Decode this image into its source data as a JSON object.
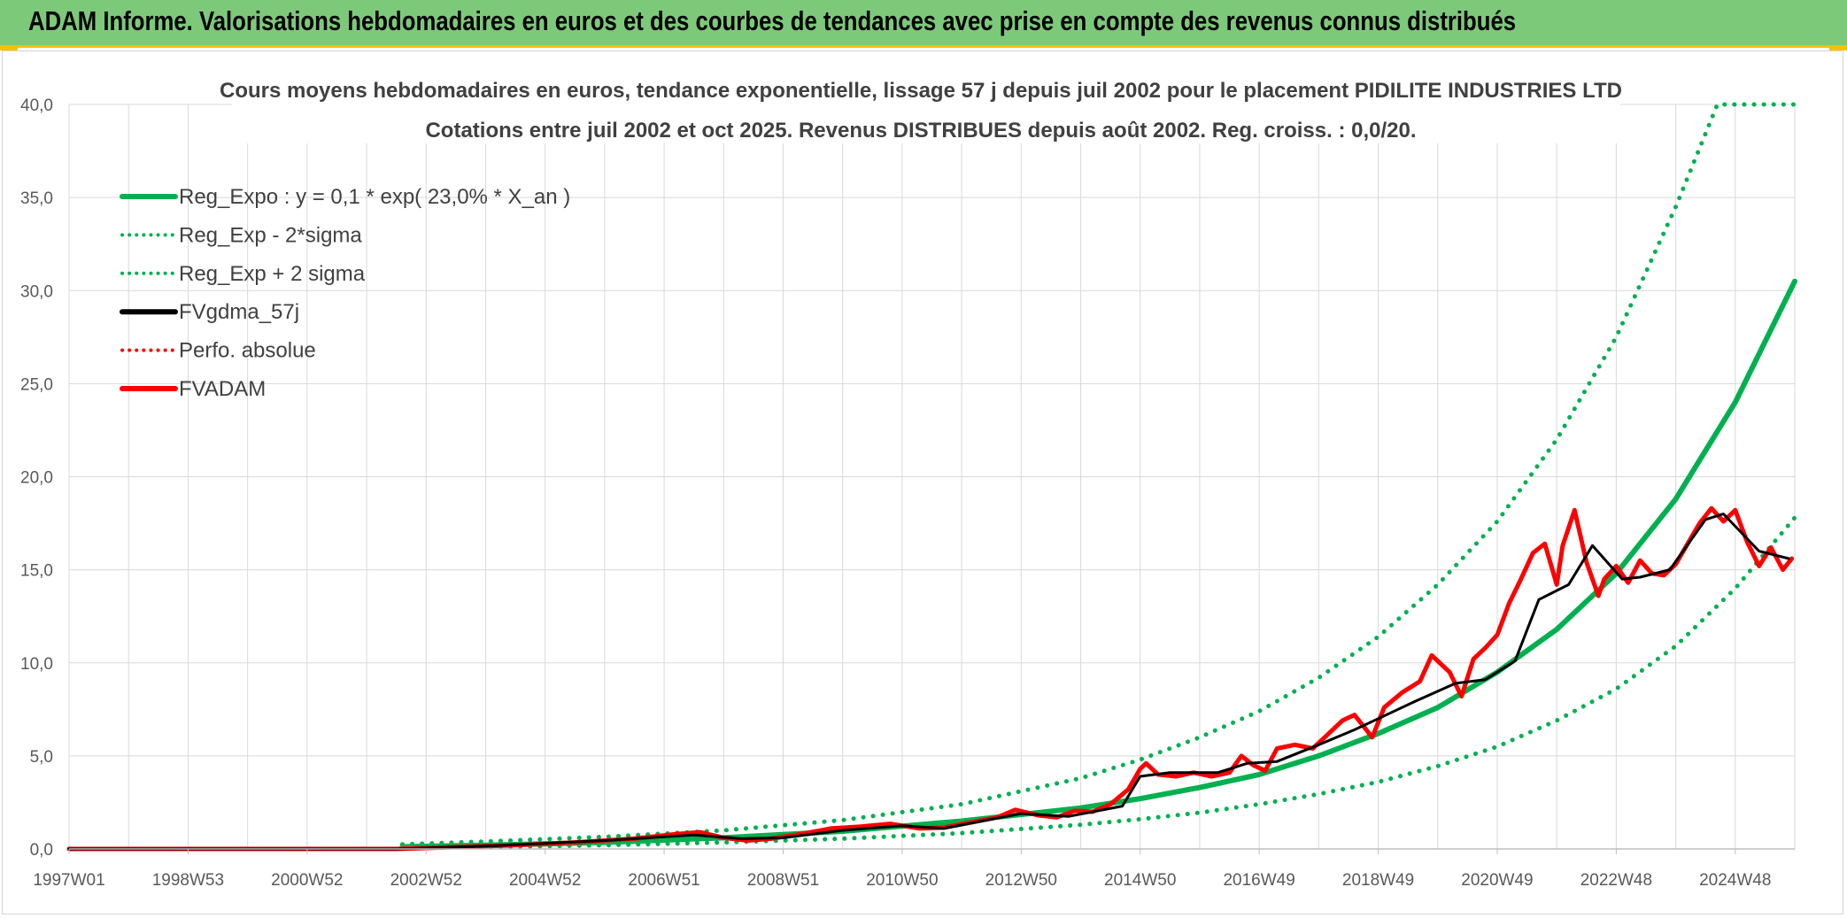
{
  "banner": {
    "title": "ADAM Informe. Valorisations hebdomadaires en euros et des courbes de tendances avec prise en compte des revenus connus distribués"
  },
  "colors": {
    "banner_bg": "#7dc97a",
    "banner_accent": "#f2c200",
    "trend": "#00b050",
    "price": "#ff0000",
    "moving_average": "#000000",
    "grid": "#d9d9d9"
  },
  "chart_data": {
    "type": "line",
    "title": "Cours moyens hebdomadaires en euros, tendance exponentielle, lissage 57 j depuis juil 2002 pour le placement PIDILITE INDUSTRIES LTD",
    "subtitle": "Cotations entre juil 2002 et oct 2025. Revenus DISTRIBUES depuis août 2002. Reg. croiss. : 0,0/20.",
    "xlabel": "",
    "ylabel": "",
    "xlim": [
      1997.0,
      2026.0
    ],
    "ylim": [
      0,
      40
    ],
    "y_ticks": [
      "0,0",
      "5,0",
      "10,0",
      "15,0",
      "20,0",
      "25,0",
      "30,0",
      "35,0",
      "40,0"
    ],
    "x_ticks": [
      {
        "label": "1997W01",
        "x": 1997.0
      },
      {
        "label": "1998W53",
        "x": 1999.0
      },
      {
        "label": "2000W52",
        "x": 2001.0
      },
      {
        "label": "2002W52",
        "x": 2003.0
      },
      {
        "label": "2004W52",
        "x": 2005.0
      },
      {
        "label": "2006W51",
        "x": 2007.0
      },
      {
        "label": "2008W51",
        "x": 2009.0
      },
      {
        "label": "2010W50",
        "x": 2011.0
      },
      {
        "label": "2012W50",
        "x": 2013.0
      },
      {
        "label": "2014W50",
        "x": 2015.0
      },
      {
        "label": "2016W49",
        "x": 2017.0
      },
      {
        "label": "2018W49",
        "x": 2019.0
      },
      {
        "label": "2020W49",
        "x": 2021.0
      },
      {
        "label": "2022W48",
        "x": 2023.0
      },
      {
        "label": "2024W48",
        "x": 2025.0
      }
    ],
    "grid": true,
    "legend_position": "top-left",
    "legend": [
      {
        "label": "Reg_Expo : y = 0,1 * exp( 23,0% *  X_an )",
        "color": "#00b050",
        "style": "solid"
      },
      {
        "label": "Reg_Exp - 2*sigma",
        "color": "#00b050",
        "style": "dotted"
      },
      {
        "label": "Reg_Exp + 2 sigma",
        "color": "#00b050",
        "style": "dotted"
      },
      {
        "label": "FVgdma_57j",
        "color": "#000000",
        "style": "solid"
      },
      {
        "label": "Perfo. absolue",
        "color": "#ff0000",
        "style": "dotted"
      },
      {
        "label": "FVADAM",
        "color": "#ff0000",
        "style": "solid"
      }
    ],
    "series": [
      {
        "name": "Reg_Expo : y = 0,1 * exp( 23,0% *  X_an )",
        "color": "#00b050",
        "style": "solid",
        "x": [
          2002.6,
          2004,
          2006,
          2008,
          2010,
          2012,
          2014,
          2015,
          2016,
          2017,
          2018,
          2019,
          2020,
          2021,
          2022,
          2023,
          2024,
          2025,
          2026
        ],
        "y": [
          0.12,
          0.2,
          0.35,
          0.6,
          0.95,
          1.5,
          2.2,
          2.7,
          3.3,
          4.0,
          5.0,
          6.2,
          7.6,
          9.5,
          11.8,
          14.8,
          18.8,
          24.0,
          30.5
        ]
      },
      {
        "name": "Reg_Exp - 2*sigma",
        "color": "#00b050",
        "style": "dotted",
        "x": [
          2002.6,
          2004,
          2006,
          2008,
          2010,
          2012,
          2014,
          2015,
          2016,
          2017,
          2018,
          2019,
          2020,
          2021,
          2022,
          2023,
          2024,
          2025,
          2026
        ],
        "y": [
          0.07,
          0.1,
          0.2,
          0.35,
          0.55,
          0.85,
          1.3,
          1.6,
          1.95,
          2.4,
          2.95,
          3.6,
          4.45,
          5.5,
          6.9,
          8.6,
          10.9,
          14.0,
          17.8
        ]
      },
      {
        "name": "Reg_Exp + 2 sigma",
        "color": "#00b050",
        "style": "dotted",
        "x": [
          2002.6,
          2004,
          2006,
          2008,
          2010,
          2012,
          2014,
          2015,
          2016,
          2017,
          2018,
          2019,
          2020,
          2021,
          2022,
          2023,
          2024,
          2024.7,
          2026
        ],
        "y": [
          0.25,
          0.4,
          0.65,
          1.0,
          1.55,
          2.4,
          3.8,
          4.8,
          6.0,
          7.4,
          9.2,
          11.4,
          14.2,
          17.6,
          22.0,
          27.5,
          34.5,
          40.0,
          40.0
        ]
      },
      {
        "name": "FVgdma_57j",
        "color": "#000000",
        "style": "solid",
        "x": [
          1997.0,
          2002.5,
          2004,
          2005,
          2006,
          2007,
          2007.5,
          2008.3,
          2009,
          2010,
          2011,
          2011.7,
          2012.5,
          2013,
          2013.8,
          2014.7,
          2015,
          2015.5,
          2016.3,
          2016.8,
          2017.3,
          2018,
          2018.6,
          2019,
          2019.6,
          2020.3,
          2020.8,
          2021.3,
          2021.7,
          2022.2,
          2022.6,
          2023.1,
          2023.4,
          2023.9,
          2024.5,
          2024.8,
          2025.4,
          2025.9
        ],
        "y": [
          0.0,
          0.0,
          0.15,
          0.3,
          0.45,
          0.65,
          0.75,
          0.55,
          0.6,
          1.0,
          1.25,
          1.1,
          1.6,
          1.9,
          1.75,
          2.3,
          3.9,
          4.1,
          4.1,
          4.6,
          4.7,
          5.6,
          6.4,
          7.0,
          7.9,
          8.9,
          9.1,
          10.1,
          13.4,
          14.2,
          16.3,
          14.5,
          14.6,
          15.0,
          17.7,
          18.0,
          16.0,
          15.6
        ]
      },
      {
        "name": "FVADAM",
        "color": "#ff0000",
        "style": "solid",
        "x": [
          1997.0,
          2002.5,
          2003.5,
          2004.5,
          2005.5,
          2006.5,
          2007.2,
          2007.6,
          2008.0,
          2008.4,
          2008.8,
          2009.3,
          2009.8,
          2010.3,
          2010.8,
          2011.3,
          2011.7,
          2012.2,
          2012.6,
          2012.9,
          2013.3,
          2013.6,
          2013.9,
          2014.2,
          2014.5,
          2014.8,
          2015.0,
          2015.1,
          2015.3,
          2015.6,
          2015.9,
          2016.2,
          2016.5,
          2016.7,
          2016.9,
          2017.1,
          2017.3,
          2017.6,
          2017.9,
          2018.1,
          2018.4,
          2018.6,
          2018.9,
          2019.1,
          2019.4,
          2019.7,
          2019.9,
          2020.2,
          2020.4,
          2020.6,
          2020.8,
          2021.0,
          2021.2,
          2021.4,
          2021.6,
          2021.8,
          2022.0,
          2022.1,
          2022.3,
          2022.5,
          2022.7,
          2022.8,
          2023.0,
          2023.2,
          2023.4,
          2023.6,
          2023.8,
          2024.0,
          2024.2,
          2024.4,
          2024.6,
          2024.8,
          2025.0,
          2025.2,
          2025.4,
          2025.6,
          2025.8,
          2025.95
        ],
        "y": [
          0.0,
          0.0,
          0.1,
          0.2,
          0.35,
          0.55,
          0.8,
          0.9,
          0.6,
          0.45,
          0.55,
          0.8,
          1.1,
          1.2,
          1.35,
          1.1,
          1.15,
          1.45,
          1.7,
          2.1,
          1.8,
          1.7,
          2.05,
          2.0,
          2.4,
          3.2,
          4.3,
          4.6,
          4.0,
          3.9,
          4.1,
          3.9,
          4.1,
          5.0,
          4.5,
          4.2,
          5.4,
          5.6,
          5.4,
          6.0,
          6.9,
          7.2,
          6.0,
          7.6,
          8.4,
          9.0,
          10.4,
          9.5,
          8.2,
          10.2,
          10.8,
          11.5,
          13.2,
          14.5,
          15.9,
          16.4,
          14.2,
          16.3,
          18.2,
          15.4,
          13.6,
          14.5,
          15.2,
          14.3,
          15.5,
          14.8,
          14.7,
          15.3,
          16.4,
          17.5,
          18.3,
          17.6,
          18.2,
          16.5,
          15.2,
          16.2,
          15.0,
          15.6
        ]
      }
    ]
  }
}
